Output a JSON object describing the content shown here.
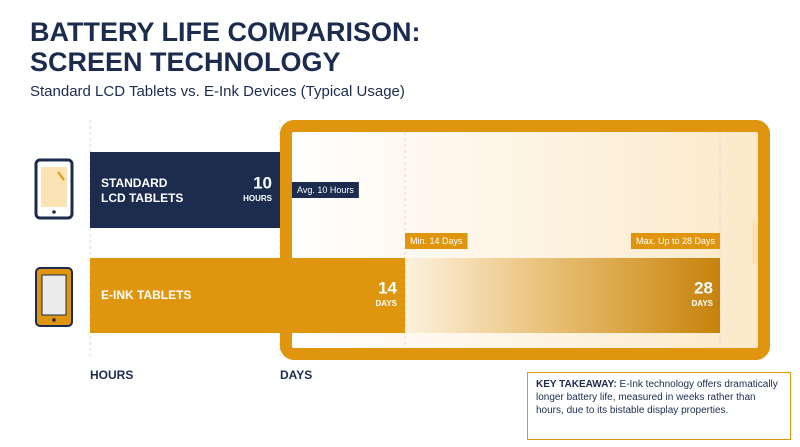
{
  "chart_data": {
    "type": "bar",
    "title_lines": [
      "BATTERY LIFE COMPARISON:",
      "SCREEN TECHNOLOGY"
    ],
    "subtitle": "Standard LCD Tablets vs. E-Ink Devices (Typical Usage)",
    "axis_labels": [
      "HOURS",
      "DAYS"
    ],
    "bars": [
      {
        "label_lines": [
          "STANDARD",
          "LCD TABLETS"
        ],
        "value": 10,
        "unit": "HOURS",
        "color": "#1b2c4f",
        "callout": "Avg. 10 Hours"
      },
      {
        "label_lines": [
          "E-INK TABLETS"
        ],
        "value": 14,
        "unit": "DAYS",
        "max_value": 28,
        "max_unit": "DAYS",
        "color": "#e0950f",
        "callouts": [
          "Min. 14 Days",
          "Max. Up to 28 Days"
        ]
      }
    ],
    "takeaway": {
      "label": "KEY TAKEAWAY:",
      "text": "E-Ink technology offers dramatically longer battery life, measured in weeks rather than hours, due to its bistable display properties."
    }
  }
}
